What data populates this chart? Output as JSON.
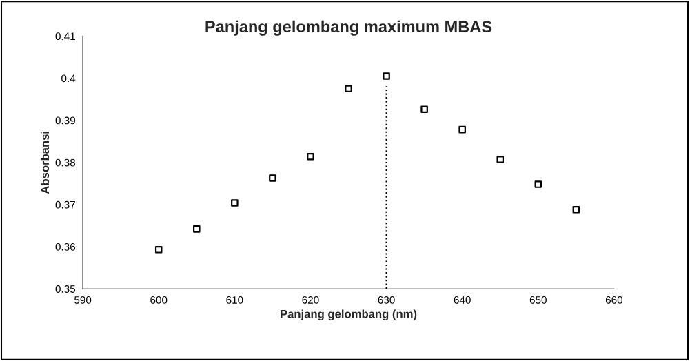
{
  "chart_data": {
    "type": "scatter",
    "title": "Panjang gelombang maximum MBAS",
    "xlabel": "Panjang gelombang (nm)",
    "ylabel": "Absorbansi",
    "x": [
      600,
      605,
      610,
      615,
      620,
      625,
      630,
      635,
      640,
      645,
      650,
      655
    ],
    "series": [
      {
        "color": "#000000",
        "values": [
          0.3593,
          0.3642,
          0.3704,
          0.3763,
          0.3814,
          0.3975,
          0.4005,
          0.3926,
          0.3878,
          0.3807,
          0.3748,
          0.3688
        ]
      }
    ],
    "xlim": [
      590,
      660
    ],
    "xticks": [
      590,
      600,
      610,
      620,
      630,
      640,
      650,
      660
    ],
    "ylim": [
      0.35,
      0.41
    ],
    "yticks": [
      0.35,
      0.36,
      0.37,
      0.38,
      0.39,
      0.4,
      0.41
    ],
    "ref_lines": [
      {
        "axis": "x",
        "value": 630,
        "color": "#000000",
        "line_style": "dotted"
      }
    ],
    "marker": "square",
    "grid": false,
    "legend": false
  }
}
